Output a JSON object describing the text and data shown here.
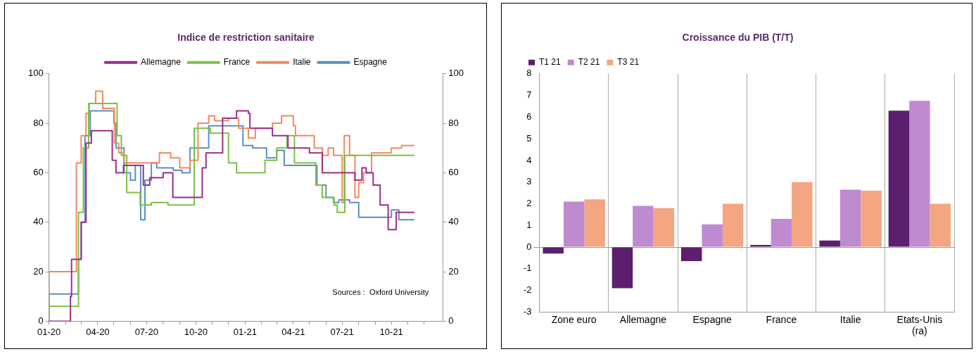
{
  "chart_data": [
    {
      "type": "step",
      "title": "Indice de restriction sanitaire",
      "legend": "top",
      "grid": false,
      "marker": "none",
      "xlim": [
        "2020-01-01",
        "2022-01-05"
      ],
      "ylim": [
        0,
        100
      ],
      "yticks": [
        0,
        20,
        40,
        60,
        80,
        100
      ],
      "y2lim": [
        0,
        100
      ],
      "y2ticks": [
        0,
        20,
        40,
        60,
        80,
        100
      ],
      "xticks": [
        {
          "value": "2020-01",
          "label": "01-20"
        },
        {
          "value": "2020-02",
          "label": null
        },
        {
          "value": "2020-03",
          "label": null
        },
        {
          "value": "2020-04",
          "label": "04-20"
        },
        {
          "value": "2020-05",
          "label": null
        },
        {
          "value": "2020-06",
          "label": null
        },
        {
          "value": "2020-07",
          "label": "07-20"
        },
        {
          "value": "2020-08",
          "label": null
        },
        {
          "value": "2020-09",
          "label": null
        },
        {
          "value": "2020-10",
          "label": "10-20"
        },
        {
          "value": "2020-11",
          "label": null
        },
        {
          "value": "2020-12",
          "label": null
        },
        {
          "value": "2021-01",
          "label": "01-21"
        },
        {
          "value": "2021-02",
          "label": null
        },
        {
          "value": "2021-03",
          "label": null
        },
        {
          "value": "2021-04",
          "label": "04-21"
        },
        {
          "value": "2021-05",
          "label": null
        },
        {
          "value": "2021-06",
          "label": null
        },
        {
          "value": "2021-07",
          "label": "07-21"
        },
        {
          "value": "2021-08",
          "label": null
        },
        {
          "value": "2021-09",
          "label": null
        },
        {
          "value": "2021-10",
          "label": "10-21"
        },
        {
          "value": "2021-11",
          "label": null
        },
        {
          "value": "2021-12",
          "label": null
        }
      ],
      "annotations": [
        "Sources :  Oxford University"
      ],
      "series": [
        {
          "name": "Allemagne",
          "color": "#9b2d8a",
          "x": [
            "2020-01-01",
            "2020-02-10",
            "2020-02-12",
            "2020-03-01",
            "2020-03-10",
            "2020-03-20",
            "2020-03-24",
            "2020-04-28",
            "2020-05-05",
            "2020-05-19",
            "2020-06-25",
            "2020-07-07",
            "2020-08-01",
            "2020-08-19",
            "2020-09-04",
            "2020-10-13",
            "2020-10-20",
            "2020-11-20",
            "2020-12-16",
            "2021-01-07",
            "2021-01-10",
            "2021-02-21",
            "2021-03-22",
            "2021-05-01",
            "2021-05-25",
            "2021-07-25",
            "2021-08-07",
            "2021-08-15",
            "2021-08-28",
            "2021-09-10",
            "2021-09-25",
            "2021-10-10",
            "2021-11-07",
            "2021-11-13"
          ],
          "values": [
            0,
            0,
            10,
            25,
            40,
            72,
            77,
            77,
            65,
            60,
            63,
            55,
            58,
            60,
            50,
            50,
            62,
            68,
            82,
            85,
            84,
            78,
            75,
            70,
            68,
            60,
            57,
            62,
            60,
            55,
            47,
            37,
            44,
            44
          ]
        },
        {
          "name": "France",
          "color": "#7ac143",
          "x": [
            "2020-01-01",
            "2020-02-05",
            "2020-02-25",
            "2020-03-05",
            "2020-03-15",
            "2020-03-16",
            "2020-05-07",
            "2020-05-15",
            "2020-05-25",
            "2020-06-19",
            "2020-07-10",
            "2020-08-10",
            "2020-09-28",
            "2020-10-28",
            "2020-12-01",
            "2020-12-16",
            "2021-02-07",
            "2021-03-01",
            "2021-03-20",
            "2021-04-03",
            "2021-05-13",
            "2021-05-25",
            "2021-06-16",
            "2021-06-22",
            "2021-07-06",
            "2021-08-15",
            "2021-11-13"
          ],
          "values": [
            0,
            6,
            6,
            44,
            70,
            88,
            88,
            75,
            67,
            52,
            47,
            48,
            47,
            78,
            76,
            64,
            60,
            65,
            70,
            75,
            64,
            55,
            50,
            47,
            44,
            67,
            67
          ]
        },
        {
          "name": "Italie",
          "color": "#f08a5d",
          "x": [
            "2020-01-01",
            "2020-01-28",
            "2020-02-21",
            "2020-03-01",
            "2020-03-10",
            "2020-03-16",
            "2020-03-28",
            "2020-04-10",
            "2020-05-02",
            "2020-05-10",
            "2020-05-20",
            "2020-07-25",
            "2020-08-15",
            "2020-09-01",
            "2020-09-20",
            "2020-10-05",
            "2020-10-25",
            "2020-11-05",
            "2020-12-01",
            "2020-12-20",
            "2021-01-07",
            "2021-01-20",
            "2021-02-21",
            "2021-03-10",
            "2021-04-01",
            "2021-04-05",
            "2021-05-10",
            "2021-05-25",
            "2021-06-05",
            "2021-06-15",
            "2021-07-01",
            "2021-07-05",
            "2021-07-15",
            "2021-07-25",
            "2021-08-01",
            "2021-08-10",
            "2021-08-25",
            "2021-10-01",
            "2021-10-20",
            "2021-11-01",
            "2021-11-13"
          ],
          "values": [
            0,
            20,
            20,
            64,
            75,
            84,
            88,
            93,
            86,
            72,
            68,
            64,
            68,
            66,
            62,
            65,
            80,
            83,
            81,
            82,
            78,
            74,
            78,
            80,
            83,
            79,
            75,
            70,
            67,
            70,
            67,
            48,
            75,
            67,
            50,
            56,
            60,
            68,
            70,
            71,
            71
          ]
        },
        {
          "name": "Espagne",
          "color": "#5a8fc0",
          "x": [
            "2020-01-01",
            "2020-01-28",
            "2020-02-25",
            "2020-03-01",
            "2020-03-08",
            "2020-03-18",
            "2020-03-28",
            "2020-05-01",
            "2020-05-05",
            "2020-05-20",
            "2020-06-01",
            "2020-06-10",
            "2020-06-20",
            "2020-06-28",
            "2020-07-10",
            "2020-07-20",
            "2020-08-20",
            "2020-09-05",
            "2020-09-20",
            "2020-10-25",
            "2020-12-28",
            "2021-01-15",
            "2021-02-10",
            "2021-03-01",
            "2021-03-15",
            "2021-05-15",
            "2021-06-01",
            "2021-06-15",
            "2021-06-25",
            "2021-07-15",
            "2021-08-01",
            "2021-10-01",
            "2021-10-15",
            "2021-10-25",
            "2021-11-13"
          ],
          "values": [
            0,
            11,
            11,
            25,
            40,
            75,
            85,
            85,
            80,
            70,
            60,
            57,
            63,
            41,
            57,
            64,
            62,
            61,
            60,
            70,
            79,
            71,
            70,
            66,
            69,
            63,
            55,
            50,
            48,
            49,
            48,
            42,
            45,
            41,
            41
          ]
        }
      ]
    },
    {
      "type": "bar",
      "title": "Croissance du PIB (T/T)",
      "legend": "top left",
      "grid": "x",
      "categories": [
        "Zone euro",
        "Allemagne",
        "Espagne",
        "France",
        "Italie",
        "Etats-Unis (ra)"
      ],
      "ylim": [
        -3,
        8
      ],
      "yticks": [
        -3,
        -2,
        -1,
        0,
        1,
        2,
        3,
        4,
        5,
        6,
        7,
        8
      ],
      "series": [
        {
          "name": "T1 21",
          "color": "#5c1f6e",
          "values": [
            -0.3,
            -1.9,
            -0.65,
            0.1,
            0.3,
            6.3
          ]
        },
        {
          "name": "T2 21",
          "color": "#c08ad0",
          "values": [
            2.1,
            1.9,
            1.05,
            1.3,
            2.65,
            6.75
          ]
        },
        {
          "name": "T3 21",
          "color": "#f4a582",
          "values": [
            2.2,
            1.8,
            2.0,
            3.0,
            2.6,
            2.0
          ]
        }
      ]
    }
  ]
}
